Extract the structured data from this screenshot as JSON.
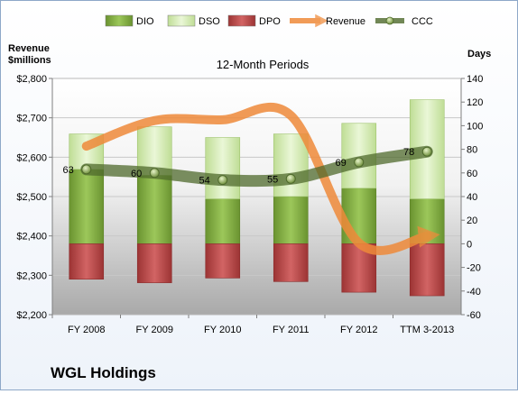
{
  "company": "WGL Holdings",
  "chart_data": {
    "type": "bar",
    "title": "12-Month Periods",
    "categories": [
      "FY 2008",
      "FY 2009",
      "FY 2010",
      "FY 2011",
      "FY 2012",
      "TTM 3-2013"
    ],
    "ylabel": "Revenue $millions",
    "ylim": [
      2200,
      2800
    ],
    "yticks": [
      "$2,200",
      "$2,300",
      "$2,400",
      "$2,500",
      "$2,600",
      "$2,700",
      "$2,800"
    ],
    "y2label": "Days",
    "y2lim": [
      -60,
      140
    ],
    "y2ticks": [
      "-60",
      "-40",
      "-20",
      "0",
      "20",
      "40",
      "60",
      "80",
      "100",
      "120",
      "140"
    ],
    "legend_position": "top",
    "series": [
      {
        "name": "DIO",
        "kind": "stacked-bar-positive",
        "axis": "right",
        "color": "#7fa83a",
        "values": [
          63,
          58,
          38,
          40,
          47,
          38
        ]
      },
      {
        "name": "DSO",
        "kind": "stacked-bar-positive",
        "axis": "right",
        "color": "#d3ecb0",
        "values": [
          30,
          41,
          52,
          53,
          55,
          84
        ]
      },
      {
        "name": "DPO",
        "kind": "bar-negative",
        "axis": "right",
        "color": "#b44545",
        "values": [
          -30,
          -33,
          -29,
          -32,
          -41,
          -44
        ]
      },
      {
        "name": "Revenue",
        "kind": "line",
        "axis": "left",
        "color": "#ef8a3a",
        "values": [
          2628,
          2693,
          2695,
          2706,
          2382,
          2400
        ]
      },
      {
        "name": "CCC",
        "kind": "line",
        "axis": "right",
        "color": "#5c7a35",
        "values": [
          63,
          60,
          54,
          55,
          69,
          78
        ]
      }
    ],
    "data_labels": [
      "63",
      "60",
      "54",
      "55",
      "69",
      "78"
    ],
    "grid": true
  }
}
